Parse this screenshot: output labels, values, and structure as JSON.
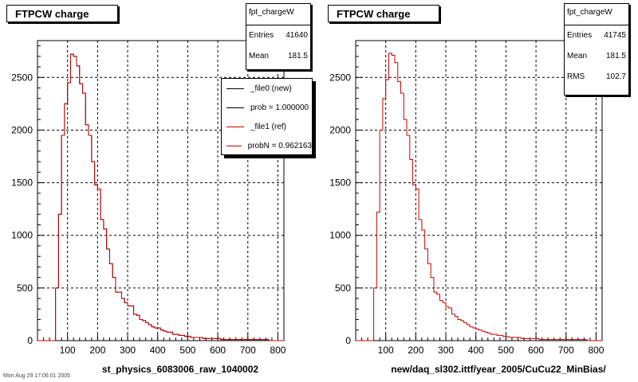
{
  "footer": "Mon Aug 29 17:06:01 2005",
  "chart_data": [
    {
      "type": "histogram",
      "title": "FTPCW charge",
      "xlabel": "st_physics_6083006_raw_1040002",
      "xlim": [
        0,
        820
      ],
      "ylim": [
        0,
        2850
      ],
      "xticks": [
        100,
        200,
        300,
        400,
        500,
        600,
        700,
        800
      ],
      "yticks": [
        0,
        500,
        1000,
        1500,
        2000,
        2500
      ],
      "grid": true,
      "stats": {
        "name": "fpt_chargeW",
        "rows": [
          [
            "Entries",
            "41640"
          ],
          [
            "Mean",
            "181.5"
          ]
        ]
      },
      "legend": {
        "placement": "top-right",
        "entries": [
          {
            "label": "_file0 (new)",
            "color": "#000000"
          },
          {
            "label": "prob = 1.000000",
            "color": "#000000"
          },
          {
            "label": "_file1 (ref)",
            "color": "#cc0000"
          },
          {
            "label": "probN = 0.962163",
            "color": "#cc0000"
          }
        ]
      },
      "series": [
        {
          "name": "_file0 (new)",
          "color": "#000000"
        },
        {
          "name": "_file1 (ref)",
          "color": "#cc0000"
        }
      ],
      "bin_edges": [
        0,
        10,
        20,
        30,
        40,
        50,
        60,
        70,
        80,
        90,
        100,
        110,
        120,
        130,
        140,
        150,
        160,
        170,
        180,
        190,
        200,
        210,
        220,
        230,
        240,
        250,
        260,
        270,
        280,
        290,
        300,
        310,
        320,
        330,
        340,
        350,
        360,
        370,
        380,
        390,
        400,
        410,
        420,
        430,
        440,
        450,
        460,
        470,
        480,
        490,
        500,
        510,
        520,
        530,
        540,
        550,
        560,
        570,
        580,
        590,
        600,
        610,
        620,
        630,
        640,
        650,
        660,
        670,
        680,
        690,
        700,
        710,
        720,
        730,
        740,
        750,
        760,
        770,
        780,
        790,
        800,
        810,
        820
      ],
      "values": [
        0,
        0,
        0,
        0,
        0,
        0,
        500,
        1200,
        1950,
        2250,
        2450,
        2720,
        2700,
        2610,
        2440,
        2350,
        2050,
        1950,
        1700,
        1480,
        1440,
        1150,
        1060,
        870,
        730,
        600,
        460,
        460,
        400,
        360,
        330,
        330,
        250,
        240,
        200,
        190,
        170,
        150,
        130,
        120,
        120,
        100,
        90,
        80,
        80,
        60,
        60,
        50,
        50,
        40,
        40,
        30,
        30,
        30,
        30,
        20,
        20,
        20,
        20,
        20,
        20,
        10,
        10,
        10,
        10,
        10,
        10,
        10,
        10,
        10,
        10,
        10,
        10,
        10,
        10,
        10,
        10,
        0,
        0,
        0,
        0,
        0
      ]
    },
    {
      "type": "histogram",
      "title": "FTPCW charge",
      "xlabel": "new/daq_sl302.ittf/year_2005/CuCu22_MinBias/",
      "xlim": [
        0,
        820
      ],
      "ylim": [
        0,
        2850
      ],
      "xticks": [
        100,
        200,
        300,
        400,
        500,
        600,
        700,
        800
      ],
      "yticks": [
        0,
        500,
        1000,
        1500,
        2000,
        2500
      ],
      "grid": true,
      "stats": {
        "name": "fpt_chargeW",
        "rows": [
          [
            "Entries",
            "41745"
          ],
          [
            "Mean",
            "181.5"
          ],
          [
            "RMS",
            "102.7"
          ]
        ]
      },
      "series": [
        {
          "color": "#cc0000"
        }
      ],
      "bin_edges": [
        0,
        10,
        20,
        30,
        40,
        50,
        60,
        70,
        80,
        90,
        100,
        110,
        120,
        130,
        140,
        150,
        160,
        170,
        180,
        190,
        200,
        210,
        220,
        230,
        240,
        250,
        260,
        270,
        280,
        290,
        300,
        310,
        320,
        330,
        340,
        350,
        360,
        370,
        380,
        390,
        400,
        410,
        420,
        430,
        440,
        450,
        460,
        470,
        480,
        490,
        500,
        510,
        520,
        530,
        540,
        550,
        560,
        570,
        580,
        590,
        600,
        610,
        620,
        630,
        640,
        650,
        660,
        670,
        680,
        690,
        700,
        710,
        720,
        730,
        740,
        750,
        760,
        770,
        780,
        790,
        800,
        810,
        820
      ],
      "values": [
        0,
        0,
        0,
        0,
        0,
        0,
        500,
        1220,
        2000,
        2300,
        2480,
        2730,
        2710,
        2640,
        2460,
        2350,
        2100,
        1950,
        1720,
        1480,
        1440,
        1150,
        1050,
        870,
        730,
        600,
        460,
        440,
        380,
        360,
        320,
        310,
        250,
        230,
        200,
        190,
        170,
        150,
        130,
        120,
        110,
        100,
        90,
        80,
        70,
        60,
        60,
        50,
        50,
        40,
        40,
        30,
        30,
        30,
        30,
        20,
        20,
        20,
        20,
        20,
        20,
        10,
        10,
        10,
        10,
        10,
        10,
        10,
        10,
        10,
        10,
        10,
        10,
        10,
        10,
        10,
        10,
        0,
        0,
        0,
        0,
        0
      ]
    }
  ]
}
